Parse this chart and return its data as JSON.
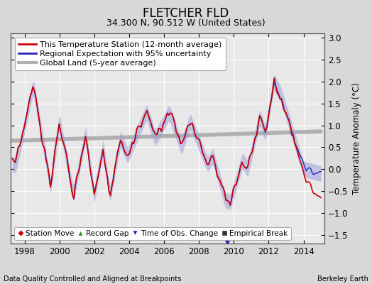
{
  "title": "FLETCHER FLD",
  "subtitle": "34.300 N, 90.512 W (United States)",
  "ylabel": "Temperature Anomaly (°C)",
  "xlabel_note": "Data Quality Controlled and Aligned at Breakpoints",
  "xlabel_note_right": "Berkeley Earth",
  "ylim": [
    -1.7,
    3.1
  ],
  "xlim": [
    1997.2,
    2015.2
  ],
  "yticks": [
    -1.5,
    -1.0,
    -0.5,
    0.0,
    0.5,
    1.0,
    1.5,
    2.0,
    2.5,
    3.0
  ],
  "xticks": [
    1998,
    2000,
    2002,
    2004,
    2006,
    2008,
    2010,
    2012,
    2014
  ],
  "bg_color": "#d8d8d8",
  "plot_bg_color": "#e8e8e8",
  "grid_color": "#ffffff",
  "regional_color": "#2222bb",
  "regional_fill_color": "#9999dd",
  "station_color": "#cc0000",
  "global_color": "#b0b0b0",
  "time_obs_marker_color": "#2222bb",
  "time_obs_x": 2009.6,
  "title_fontsize": 12,
  "subtitle_fontsize": 9,
  "tick_fontsize": 8.5,
  "legend_fontsize": 8
}
